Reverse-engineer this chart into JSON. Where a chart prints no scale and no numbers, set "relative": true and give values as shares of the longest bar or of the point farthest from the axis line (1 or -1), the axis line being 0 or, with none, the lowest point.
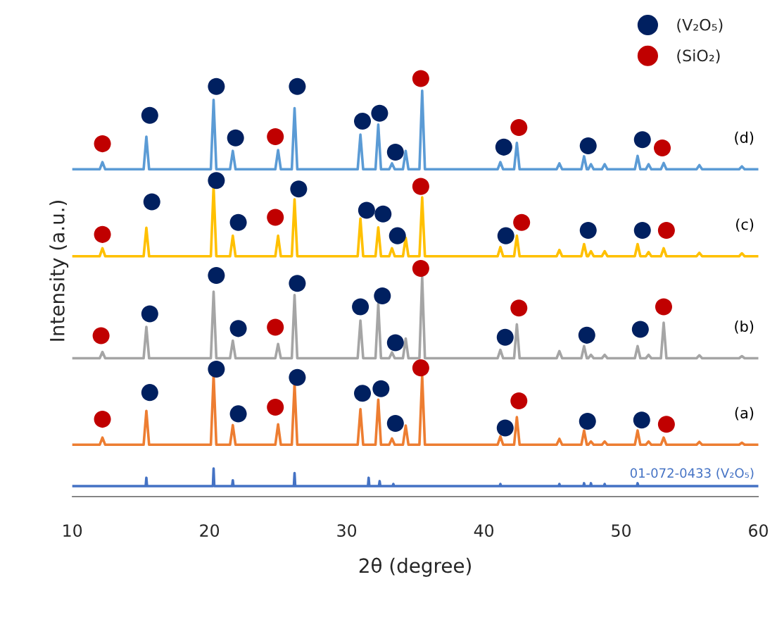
{
  "chart_data": {
    "type": "line",
    "relative": true,
    "xlabel": "2θ (degree)",
    "ylabel": "Intensity (a.u.)",
    "xlim": [
      10,
      60
    ],
    "xticks": [
      10,
      20,
      30,
      40,
      50,
      60
    ],
    "grid": false,
    "legend": "top right",
    "marker": "none",
    "line_style": "solid",
    "x": [
      10,
      12.0,
      12.2,
      12.4,
      15.2,
      15.4,
      15.6,
      20.1,
      20.3,
      20.5,
      21.5,
      21.7,
      21.9,
      24.8,
      25.0,
      25.2,
      26.0,
      26.2,
      26.4,
      30.8,
      31.0,
      31.2,
      32.1,
      32.3,
      32.5,
      33.1,
      33.3,
      33.5,
      34.1,
      34.3,
      34.5,
      35.3,
      35.5,
      35.7,
      41.0,
      41.2,
      41.4,
      42.2,
      42.4,
      42.6,
      45.3,
      45.5,
      45.7,
      47.1,
      47.3,
      47.5,
      47.6,
      47.8,
      48.0,
      48.6,
      48.8,
      49.0,
      51.0,
      51.2,
      51.4,
      51.8,
      52.0,
      52.2,
      52.9,
      53.1,
      53.3,
      55.5,
      55.7,
      55.9,
      58.6,
      58.8,
      59.0,
      60
    ],
    "series": [
      {
        "name": "01-072-0433 (V₂O₅)",
        "color": "#4472c4",
        "x": [
          10,
          15.35,
          15.4,
          15.45,
          20.25,
          20.3,
          20.35,
          21.65,
          21.7,
          21.75,
          26.15,
          26.2,
          26.25,
          31.55,
          31.6,
          31.65,
          32.35,
          32.4,
          32.45,
          33.35,
          33.4,
          33.45,
          41.15,
          41.2,
          41.25,
          45.45,
          45.5,
          45.55,
          47.25,
          47.3,
          47.35,
          47.75,
          47.8,
          47.85,
          48.75,
          48.8,
          48.85,
          51.15,
          51.2,
          51.25,
          60
        ],
        "values": [
          0.025,
          0.025,
          0.045,
          0.025,
          0.025,
          0.067,
          0.025,
          0.025,
          0.039,
          0.025,
          0.025,
          0.056,
          0.025,
          0.025,
          0.045,
          0.025,
          0.025,
          0.037,
          0.025,
          0.025,
          0.03,
          0.025,
          0.025,
          0.03,
          0.025,
          0.025,
          0.03,
          0.025,
          0.025,
          0.032,
          0.025,
          0.025,
          0.032,
          0.025,
          0.025,
          0.03,
          0.025,
          0.025,
          0.032,
          0.025,
          0.025
        ]
      },
      {
        "name": "(a)",
        "color": "#ed7d31",
        "values": [
          0.124,
          0.124,
          0.141,
          0.124,
          0.124,
          0.205,
          0.124,
          0.124,
          0.292,
          0.124,
          0.124,
          0.171,
          0.124,
          0.124,
          0.173,
          0.124,
          0.124,
          0.271,
          0.124,
          0.124,
          0.209,
          0.124,
          0.124,
          0.232,
          0.124,
          0.124,
          0.139,
          0.124,
          0.124,
          0.17,
          0.124,
          0.124,
          0.29,
          0.124,
          0.124,
          0.144,
          0.124,
          0.124,
          0.19,
          0.124,
          0.124,
          0.138,
          0.124,
          0.124,
          0.158,
          0.124,
          0.124,
          0.132,
          0.124,
          0.124,
          0.132,
          0.124,
          0.124,
          0.158,
          0.124,
          0.124,
          0.132,
          0.124,
          0.124,
          0.141,
          0.124,
          0.124,
          0.131,
          0.124,
          0.124,
          0.129,
          0.124,
          0.124
        ]
      },
      {
        "name": "(b)",
        "color": "#a5a5a5",
        "values": [
          0.331,
          0.331,
          0.346,
          0.331,
          0.331,
          0.406,
          0.331,
          0.331,
          0.49,
          0.331,
          0.331,
          0.373,
          0.331,
          0.331,
          0.365,
          0.331,
          0.331,
          0.482,
          0.331,
          0.331,
          0.421,
          0.331,
          0.331,
          0.461,
          0.331,
          0.331,
          0.345,
          0.331,
          0.331,
          0.378,
          0.331,
          0.331,
          0.526,
          0.331,
          0.331,
          0.351,
          0.331,
          0.331,
          0.412,
          0.331,
          0.331,
          0.348,
          0.331,
          0.331,
          0.36,
          0.331,
          0.331,
          0.339,
          0.331,
          0.331,
          0.339,
          0.331,
          0.331,
          0.36,
          0.331,
          0.331,
          0.339,
          0.331,
          0.331,
          0.416,
          0.331,
          0.331,
          0.338,
          0.331,
          0.331,
          0.336,
          0.331,
          0.331
        ]
      },
      {
        "name": "(c)",
        "color": "#ffc000",
        "values": [
          0.575,
          0.575,
          0.594,
          0.575,
          0.575,
          0.643,
          0.575,
          0.575,
          0.743,
          0.575,
          0.575,
          0.624,
          0.575,
          0.575,
          0.624,
          0.575,
          0.575,
          0.711,
          0.575,
          0.575,
          0.665,
          0.575,
          0.575,
          0.644,
          0.575,
          0.575,
          0.594,
          0.575,
          0.575,
          0.619,
          0.575,
          0.575,
          0.716,
          0.575,
          0.575,
          0.597,
          0.575,
          0.575,
          0.624,
          0.575,
          0.575,
          0.59,
          0.575,
          0.575,
          0.604,
          0.575,
          0.575,
          0.587,
          0.575,
          0.575,
          0.587,
          0.575,
          0.575,
          0.604,
          0.575,
          0.575,
          0.585,
          0.575,
          0.575,
          0.594,
          0.575,
          0.575,
          0.583,
          0.575,
          0.575,
          0.582,
          0.575,
          0.575
        ]
      },
      {
        "name": "(d)",
        "color": "#5b9bd5",
        "values": [
          0.783,
          0.783,
          0.8,
          0.783,
          0.783,
          0.861,
          0.783,
          0.783,
          0.949,
          0.783,
          0.783,
          0.827,
          0.783,
          0.783,
          0.829,
          0.783,
          0.783,
          0.929,
          0.783,
          0.783,
          0.866,
          0.783,
          0.783,
          0.89,
          0.783,
          0.783,
          0.797,
          0.783,
          0.783,
          0.827,
          0.783,
          0.783,
          0.971,
          0.783,
          0.783,
          0.8,
          0.783,
          0.783,
          0.846,
          0.783,
          0.783,
          0.797,
          0.783,
          0.783,
          0.814,
          0.783,
          0.783,
          0.795,
          0.783,
          0.783,
          0.795,
          0.783,
          0.783,
          0.815,
          0.783,
          0.783,
          0.795,
          0.783,
          0.783,
          0.798,
          0.783,
          0.783,
          0.793,
          0.783,
          0.783,
          0.79,
          0.783,
          0.783
        ]
      },
      {
        "name": "(V₂O₅)",
        "type": "scatter",
        "marker": "circle",
        "color": "#002060",
        "x": [
          15.65,
          20.5,
          21.9,
          26.4,
          31.15,
          32.4,
          33.55,
          41.45,
          47.6,
          51.55,
          15.8,
          20.5,
          22.1,
          26.5,
          31.45,
          32.65,
          33.7,
          41.6,
          47.6,
          51.55,
          15.65,
          20.5,
          22.1,
          26.4,
          31.0,
          32.6,
          33.55,
          41.55,
          47.5,
          51.4,
          15.65,
          20.5,
          22.1,
          26.4,
          31.15,
          32.5,
          33.55,
          41.55,
          47.55,
          51.5
        ],
        "values": [
          0.912,
          0.981,
          0.858,
          0.981,
          0.898,
          0.917,
          0.824,
          0.836,
          0.839,
          0.854,
          0.705,
          0.756,
          0.656,
          0.736,
          0.685,
          0.676,
          0.624,
          0.624,
          0.637,
          0.637,
          0.437,
          0.529,
          0.402,
          0.51,
          0.454,
          0.48,
          0.368,
          0.381,
          0.386,
          0.4,
          0.249,
          0.305,
          0.198,
          0.285,
          0.247,
          0.258,
          0.175,
          0.164,
          0.18,
          0.183
        ]
      },
      {
        "name": "(SiO₂)",
        "type": "scatter",
        "marker": "circle",
        "color": "#c00000",
        "x": [
          12.2,
          24.8,
          35.4,
          42.55,
          53.0,
          12.2,
          24.8,
          35.4,
          42.75,
          53.3,
          12.1,
          24.8,
          35.4,
          42.55,
          53.1,
          12.2,
          24.8,
          35.4,
          42.55,
          53.3
        ],
        "values": [
          0.844,
          0.861,
          1.0,
          0.883,
          0.834,
          0.627,
          0.668,
          0.742,
          0.656,
          0.637,
          0.385,
          0.405,
          0.546,
          0.451,
          0.454,
          0.185,
          0.214,
          0.308,
          0.229,
          0.173
        ]
      }
    ]
  }
}
